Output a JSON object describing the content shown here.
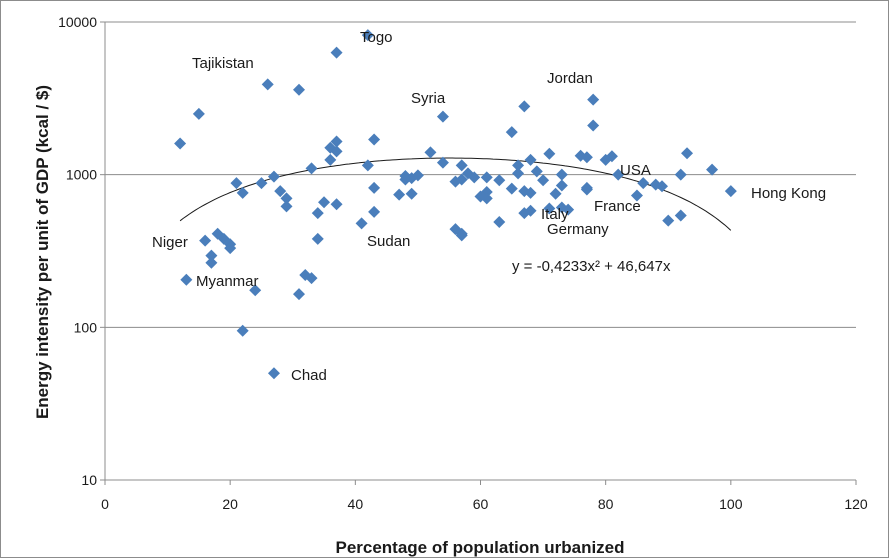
{
  "chart_data": {
    "type": "scatter",
    "title": "",
    "xlabel": "Percentage of population urbanized",
    "ylabel": "Energy intensity per unit of GDP (kcal / $)",
    "xlim": [
      0,
      120
    ],
    "ylim": [
      10,
      10000
    ],
    "y_scale": "log",
    "x_ticks": [
      "0",
      "20",
      "40",
      "60",
      "80",
      "100",
      "120"
    ],
    "y_ticks": [
      "10",
      "100",
      "1000",
      "10000"
    ],
    "grid": "horizontal",
    "legend": "none",
    "marker_color": "#4a7ebb",
    "trendline_color": "#1a1a1a",
    "trendline_equation": "y = -0,4233x² + 46,647x",
    "trendline": {
      "type": "polynomial",
      "a": -0.4233,
      "b": 46.647,
      "c": 0,
      "x_range": [
        12,
        100
      ]
    },
    "annotations": [
      {
        "text": "Togo",
        "x": 42,
        "y": 8200
      },
      {
        "text": "Tajikistan",
        "x": 26,
        "y": 3900
      },
      {
        "text": "Jordan",
        "x": 78,
        "y": 3100
      },
      {
        "text": "Syria",
        "x": 54,
        "y": 2400
      },
      {
        "text": "USA",
        "x": 82,
        "y": 1150
      },
      {
        "text": "Hong Kong",
        "x": 100,
        "y": 780
      },
      {
        "text": "France",
        "x": 85,
        "y": 730
      },
      {
        "text": "Italy",
        "x": 67,
        "y": 560
      },
      {
        "text": "Germany",
        "x": 73,
        "y": 600
      },
      {
        "text": "Sudan",
        "x": 41,
        "y": 480
      },
      {
        "text": "Niger",
        "x": 16,
        "y": 370
      },
      {
        "text": "Myanmar",
        "x": 13,
        "y": 205
      },
      {
        "text": "Chad",
        "x": 27,
        "y": 50
      }
    ],
    "points": [
      {
        "x": 42,
        "y": 8200
      },
      {
        "x": 37,
        "y": 6300
      },
      {
        "x": 26,
        "y": 3900
      },
      {
        "x": 31,
        "y": 3600
      },
      {
        "x": 15,
        "y": 2500
      },
      {
        "x": 12,
        "y": 1600
      },
      {
        "x": 78,
        "y": 3100
      },
      {
        "x": 67,
        "y": 2800
      },
      {
        "x": 54,
        "y": 2400
      },
      {
        "x": 78,
        "y": 2100
      },
      {
        "x": 65,
        "y": 1900
      },
      {
        "x": 43,
        "y": 1700
      },
      {
        "x": 37,
        "y": 1650
      },
      {
        "x": 36,
        "y": 1500
      },
      {
        "x": 37,
        "y": 1420
      },
      {
        "x": 52,
        "y": 1400
      },
      {
        "x": 93,
        "y": 1380
      },
      {
        "x": 71,
        "y": 1370
      },
      {
        "x": 76,
        "y": 1330
      },
      {
        "x": 77,
        "y": 1300
      },
      {
        "x": 81,
        "y": 1320
      },
      {
        "x": 80,
        "y": 1250
      },
      {
        "x": 36,
        "y": 1250
      },
      {
        "x": 68,
        "y": 1250
      },
      {
        "x": 54,
        "y": 1200
      },
      {
        "x": 42,
        "y": 1150
      },
      {
        "x": 57,
        "y": 1150
      },
      {
        "x": 66,
        "y": 1150
      },
      {
        "x": 33,
        "y": 1100
      },
      {
        "x": 97,
        "y": 1080
      },
      {
        "x": 69,
        "y": 1050
      },
      {
        "x": 58,
        "y": 1020
      },
      {
        "x": 66,
        "y": 1020
      },
      {
        "x": 82,
        "y": 1000
      },
      {
        "x": 73,
        "y": 1000
      },
      {
        "x": 92,
        "y": 1000
      },
      {
        "x": 48,
        "y": 980
      },
      {
        "x": 50,
        "y": 990
      },
      {
        "x": 27,
        "y": 970
      },
      {
        "x": 59,
        "y": 960
      },
      {
        "x": 61,
        "y": 960
      },
      {
        "x": 49,
        "y": 950
      },
      {
        "x": 48,
        "y": 930
      },
      {
        "x": 57,
        "y": 930
      },
      {
        "x": 56,
        "y": 900
      },
      {
        "x": 63,
        "y": 920
      },
      {
        "x": 70,
        "y": 920
      },
      {
        "x": 25,
        "y": 880
      },
      {
        "x": 21,
        "y": 880
      },
      {
        "x": 86,
        "y": 880
      },
      {
        "x": 88,
        "y": 860
      },
      {
        "x": 73,
        "y": 850
      },
      {
        "x": 89,
        "y": 840
      },
      {
        "x": 77,
        "y": 820
      },
      {
        "x": 43,
        "y": 820
      },
      {
        "x": 65,
        "y": 810
      },
      {
        "x": 77,
        "y": 800
      },
      {
        "x": 100,
        "y": 780
      },
      {
        "x": 28,
        "y": 780
      },
      {
        "x": 67,
        "y": 780
      },
      {
        "x": 61,
        "y": 770
      },
      {
        "x": 22,
        "y": 760
      },
      {
        "x": 68,
        "y": 760
      },
      {
        "x": 49,
        "y": 750
      },
      {
        "x": 72,
        "y": 750
      },
      {
        "x": 47,
        "y": 740
      },
      {
        "x": 85,
        "y": 730
      },
      {
        "x": 60,
        "y": 720
      },
      {
        "x": 29,
        "y": 700
      },
      {
        "x": 61,
        "y": 700
      },
      {
        "x": 35,
        "y": 660
      },
      {
        "x": 37,
        "y": 640
      },
      {
        "x": 29,
        "y": 620
      },
      {
        "x": 73,
        "y": 610
      },
      {
        "x": 71,
        "y": 600
      },
      {
        "x": 74,
        "y": 590
      },
      {
        "x": 68,
        "y": 580
      },
      {
        "x": 43,
        "y": 570
      },
      {
        "x": 34,
        "y": 560
      },
      {
        "x": 67,
        "y": 560
      },
      {
        "x": 92,
        "y": 540
      },
      {
        "x": 90,
        "y": 500
      },
      {
        "x": 63,
        "y": 490
      },
      {
        "x": 41,
        "y": 480
      },
      {
        "x": 56,
        "y": 440
      },
      {
        "x": 57,
        "y": 410
      },
      {
        "x": 57,
        "y": 400
      },
      {
        "x": 18,
        "y": 410
      },
      {
        "x": 19,
        "y": 380
      },
      {
        "x": 16,
        "y": 370
      },
      {
        "x": 34,
        "y": 380
      },
      {
        "x": 20,
        "y": 350
      },
      {
        "x": 20,
        "y": 330
      },
      {
        "x": 17,
        "y": 295
      },
      {
        "x": 17,
        "y": 265
      },
      {
        "x": 32,
        "y": 220
      },
      {
        "x": 33,
        "y": 210
      },
      {
        "x": 13,
        "y": 205
      },
      {
        "x": 24,
        "y": 175
      },
      {
        "x": 31,
        "y": 165
      },
      {
        "x": 22,
        "y": 95
      },
      {
        "x": 27,
        "y": 50
      }
    ]
  }
}
